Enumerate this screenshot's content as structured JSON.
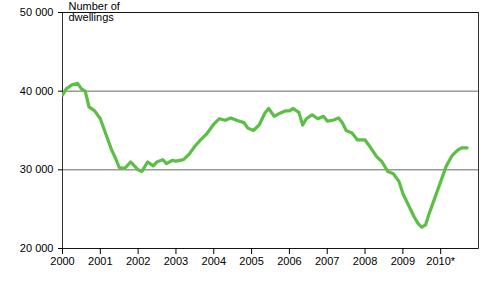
{
  "chart_data": {
    "type": "line",
    "y_label": "Number of dwellings",
    "color": "#5cbf45",
    "grid": true,
    "x": [
      2000.0,
      2000.1,
      2000.25,
      2000.4,
      2000.5,
      2000.6,
      2000.7,
      2000.85,
      2001.0,
      2001.15,
      2001.3,
      2001.4,
      2001.5,
      2001.65,
      2001.8,
      2001.9,
      2002.0,
      2002.1,
      2002.25,
      2002.4,
      2002.5,
      2002.65,
      2002.75,
      2002.9,
      2003.0,
      2003.2,
      2003.35,
      2003.5,
      2003.65,
      2003.8,
      2004.0,
      2004.15,
      2004.3,
      2004.45,
      2004.6,
      2004.8,
      2004.9,
      2005.05,
      2005.2,
      2005.35,
      2005.45,
      2005.6,
      2005.75,
      2005.9,
      2006.0,
      2006.1,
      2006.25,
      2006.35,
      2006.45,
      2006.6,
      2006.75,
      2006.9,
      2007.0,
      2007.15,
      2007.3,
      2007.4,
      2007.5,
      2007.65,
      2007.8,
      2008.0,
      2008.15,
      2008.3,
      2008.45,
      2008.6,
      2008.75,
      2008.9,
      2009.0,
      2009.15,
      2009.3,
      2009.4,
      2009.5,
      2009.6,
      2009.7,
      2009.85,
      2010.0,
      2010.15,
      2010.3,
      2010.45,
      2010.55,
      2010.7
    ],
    "values": [
      39500,
      40300,
      40800,
      41000,
      40300,
      40000,
      38000,
      37500,
      36500,
      34500,
      32500,
      31500,
      30300,
      30200,
      31000,
      30500,
      30000,
      29800,
      31000,
      30500,
      31000,
      31300,
      30800,
      31200,
      31100,
      31300,
      32000,
      33000,
      33800,
      34500,
      35800,
      36500,
      36300,
      36600,
      36300,
      36000,
      35300,
      35000,
      35700,
      37200,
      37800,
      36800,
      37200,
      37500,
      37500,
      37800,
      37300,
      35700,
      36500,
      37000,
      36500,
      36800,
      36200,
      36300,
      36600,
      36000,
      35000,
      34700,
      33800,
      33800,
      32800,
      31700,
      31000,
      29800,
      29500,
      28500,
      27000,
      25500,
      24000,
      23200,
      22700,
      23000,
      24500,
      26500,
      28500,
      30500,
      31800,
      32500,
      32800,
      32800
    ],
    "xlim": [
      2000,
      2011
    ],
    "xticks": [
      2000,
      2001,
      2002,
      2003,
      2004,
      2005,
      2006,
      2007,
      2008,
      2009,
      {
        "value": 2010,
        "label": "2010*"
      }
    ],
    "ylim": [
      20000,
      50000
    ],
    "yticks": [
      {
        "value": 20000,
        "label": "20 000"
      },
      {
        "value": 30000,
        "label": "30 000"
      },
      {
        "value": 40000,
        "label": "40 000"
      },
      {
        "value": 50000,
        "label": "50 000"
      }
    ]
  }
}
